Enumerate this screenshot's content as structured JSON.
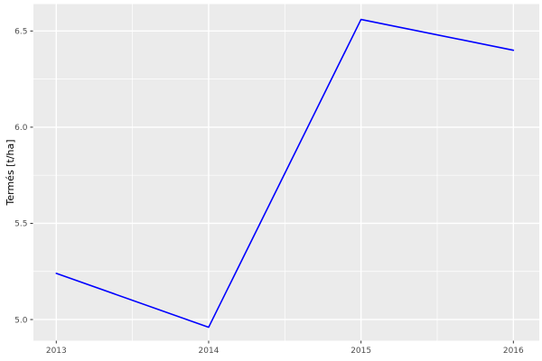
{
  "chart_data": {
    "type": "line",
    "title": "",
    "xlabel": "",
    "ylabel": "Termés [t/ha]",
    "x": [
      2013,
      2014,
      2015,
      2016
    ],
    "series": [
      {
        "name": "Termés",
        "values": [
          5.24,
          4.96,
          6.56,
          6.4
        ]
      }
    ],
    "x_tick_labels": [
      "2013",
      "2014",
      "2015",
      "2016"
    ],
    "y_ticks": [
      5.0,
      5.5,
      6.0,
      6.5
    ],
    "y_tick_labels": [
      "5.0",
      "5.5",
      "6.0",
      "6.5"
    ],
    "minor_x": [
      2013.5,
      2014.5,
      2015.5
    ],
    "minor_y": [
      5.25,
      5.75,
      6.25
    ],
    "xlim": [
      2012.85,
      2016.17
    ],
    "ylim": [
      4.89,
      6.64
    ],
    "grid": "major-and-minor",
    "legend": "none",
    "theme": "ggplot2-grey",
    "colors": {
      "line": "#0000FF",
      "panel_background": "#EBEBEB",
      "gridline": "#FFFFFF",
      "tick_label": "#4D4D4D",
      "axis_title": "#000000",
      "tick_mark": "#333333",
      "figure_background": "#FFFFFF"
    }
  }
}
